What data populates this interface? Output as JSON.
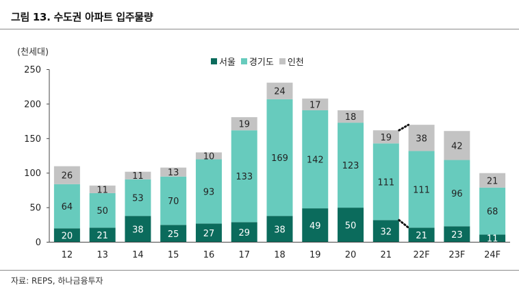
{
  "title": "그림 13. 수도권 아파트 입주물량",
  "source": "자료: REPS, 하나금융투자",
  "colors": {
    "seoul": "#0b6b5c",
    "gyeonggi": "#67cbbd",
    "incheon": "#c3c3c3"
  },
  "chart_data": {
    "type": "bar",
    "stacked": true,
    "unit_label": "(천세대)",
    "categories": [
      "12",
      "13",
      "14",
      "15",
      "16",
      "17",
      "18",
      "19",
      "20",
      "21",
      "22F",
      "23F",
      "24F"
    ],
    "series": [
      {
        "name": "서울",
        "values": [
          20,
          21,
          38,
          25,
          27,
          29,
          38,
          49,
          50,
          32,
          21,
          23,
          11
        ]
      },
      {
        "name": "경기도",
        "values": [
          64,
          50,
          53,
          70,
          93,
          133,
          169,
          142,
          123,
          111,
          111,
          96,
          68
        ]
      },
      {
        "name": "인천",
        "values": [
          26,
          11,
          11,
          13,
          10,
          19,
          24,
          17,
          18,
          19,
          38,
          42,
          21
        ]
      }
    ],
    "yticks": [
      0,
      50,
      100,
      150,
      200,
      250
    ],
    "ylim": [
      0,
      250
    ],
    "legend_position": "top-center",
    "grid": false,
    "annotations": [
      {
        "type": "dotted-connector",
        "from": "21",
        "to": "22F",
        "at": "seoul-top"
      },
      {
        "type": "dotted-connector",
        "from": "21",
        "to": "22F",
        "at": "stack-top"
      }
    ]
  }
}
